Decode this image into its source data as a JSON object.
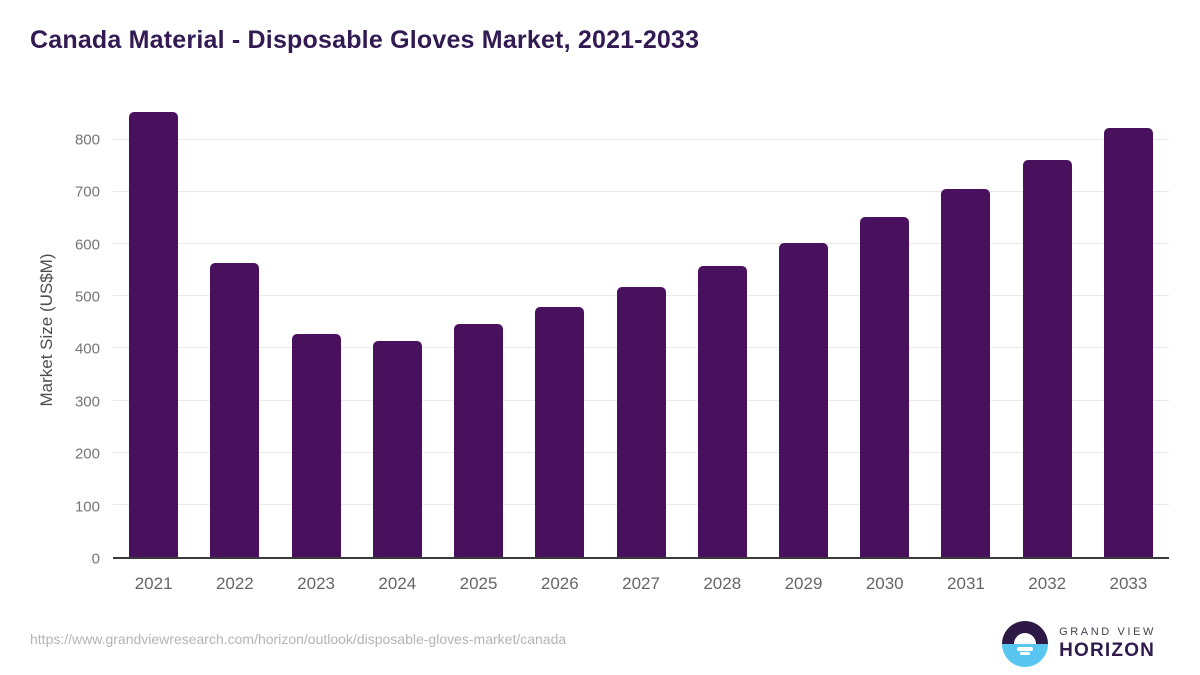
{
  "page": {
    "title": "Canada Material - Disposable Gloves Market, 2021-2033"
  },
  "chart_data": {
    "type": "bar",
    "title": "Canada Material - Disposable Gloves Market, 2021-2033",
    "categories": [
      "2021",
      "2022",
      "2023",
      "2024",
      "2025",
      "2026",
      "2027",
      "2028",
      "2029",
      "2030",
      "2031",
      "2032",
      "2033"
    ],
    "values": [
      853,
      563,
      427,
      415,
      446,
      480,
      517,
      558,
      602,
      651,
      705,
      762,
      823
    ],
    "xlabel": "",
    "ylabel": "Market Size (US$M)",
    "ylim": [
      0,
      880
    ],
    "yticks": [
      0,
      100,
      200,
      300,
      400,
      500,
      600,
      700,
      800
    ],
    "grid": true,
    "legend": false,
    "bar_color": "#49115d"
  },
  "footer": {
    "source_url": "https://www.grandviewresearch.com/horizon/outlook/disposable-gloves-market/canada",
    "logo_line1": "GRAND VIEW",
    "logo_line2": "HORIZON"
  },
  "colors": {
    "title_text": "#321a52",
    "bar": "#49115d",
    "ytick_text": "#757575",
    "xtick_text": "#666666",
    "gridline": "#e9e9e9",
    "axis_line": "#3a3a3a",
    "url_text": "#b4b4b4",
    "logo_dark": "#2d1846",
    "logo_blue": "#59c6f2"
  }
}
